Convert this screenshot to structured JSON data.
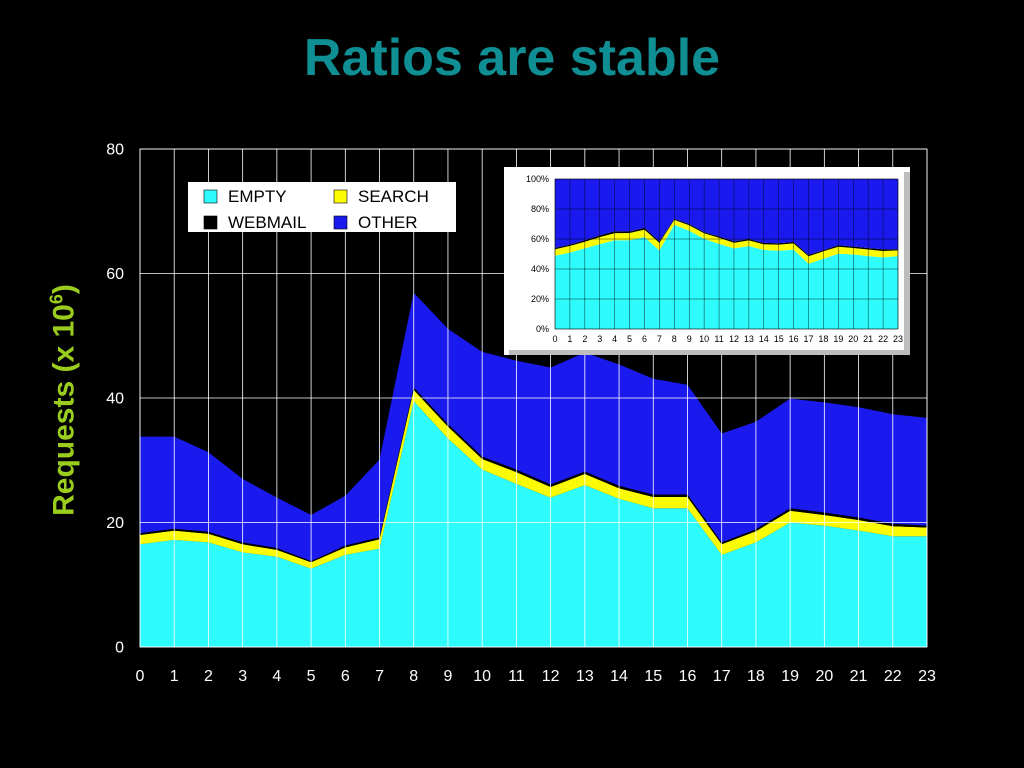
{
  "slide": {
    "title": "Ratios are stable",
    "ylabel_main": "Requests (x 10",
    "ylabel_sup": "6",
    "ylabel_end": ")"
  },
  "chart_data": [
    {
      "type": "area",
      "stacked": true,
      "title": "",
      "xlabel": "",
      "ylabel": "Requests (x 10^6)",
      "x": [
        0,
        1,
        2,
        3,
        4,
        5,
        6,
        7,
        8,
        9,
        10,
        11,
        12,
        13,
        14,
        15,
        16,
        17,
        18,
        19,
        20,
        21,
        22,
        23
      ],
      "ylim": [
        0,
        80
      ],
      "yticks": [
        0,
        20,
        40,
        60,
        80
      ],
      "grid": true,
      "legend_position": "top-left",
      "series": [
        {
          "name": "EMPTY",
          "color": "#2efcfc",
          "values": [
            16.5,
            17.2,
            16.8,
            15.2,
            14.5,
            12.6,
            14.8,
            15.8,
            39.5,
            33.5,
            28.5,
            26.2,
            24.0,
            26.0,
            23.8,
            22.3,
            22.3,
            14.8,
            16.8,
            20.0,
            19.5,
            18.7,
            17.8,
            17.8
          ]
        },
        {
          "name": "SEARCH",
          "color": "#fbfb05",
          "values": [
            1.5,
            1.5,
            1.4,
            1.3,
            1.1,
            1.0,
            1.2,
            1.5,
            1.8,
            1.9,
            1.7,
            1.9,
            1.7,
            1.8,
            1.7,
            1.8,
            1.8,
            1.7,
            1.8,
            1.9,
            1.7,
            1.7,
            1.6,
            1.4
          ]
        },
        {
          "name": "WEBMAIL",
          "color": "#000000",
          "values": [
            0.3,
            0.3,
            0.3,
            0.3,
            0.3,
            0.2,
            0.3,
            0.3,
            0.4,
            0.4,
            0.4,
            0.4,
            0.4,
            0.4,
            0.4,
            0.4,
            0.4,
            0.3,
            0.3,
            0.4,
            0.4,
            0.4,
            0.4,
            0.3
          ]
        },
        {
          "name": "OTHER",
          "color": "#1a1aee",
          "values": [
            15.5,
            14.8,
            12.8,
            10.2,
            8.1,
            7.4,
            8.0,
            12.5,
            15.2,
            15.3,
            16.8,
            17.5,
            18.8,
            19.1,
            19.5,
            18.6,
            17.6,
            17.5,
            17.3,
            17.6,
            17.7,
            17.7,
            17.6,
            17.3
          ]
        }
      ]
    },
    {
      "type": "area",
      "stacked": true,
      "percent": true,
      "title": "",
      "x": [
        0,
        1,
        2,
        3,
        4,
        5,
        6,
        7,
        8,
        9,
        10,
        11,
        12,
        13,
        14,
        15,
        16,
        17,
        18,
        19,
        20,
        21,
        22,
        23
      ],
      "ylim": [
        0,
        100
      ],
      "yticks": [
        "0%",
        "20%",
        "40%",
        "60%",
        "80%",
        "100%"
      ],
      "grid": true,
      "series": [
        {
          "name": "EMPTY",
          "color": "#2efcfc",
          "values": [
            48.8,
            51.0,
            53.7,
            56.5,
            59.2,
            59.2,
            61.3,
            52.4,
            69.5,
            65.5,
            60.2,
            56.7,
            53.7,
            55.3,
            52.7,
            52.1,
            52.8,
            43.5,
            46.8,
            50.1,
            49.7,
            48.6,
            47.7,
            48.6
          ]
        },
        {
          "name": "SEARCH",
          "color": "#fbfb05",
          "values": [
            4.4,
            4.4,
            4.5,
            4.8,
            4.7,
            4.8,
            5.0,
            5.0,
            3.2,
            3.7,
            3.6,
            4.1,
            3.8,
            3.8,
            3.8,
            4.2,
            4.3,
            5.0,
            5.0,
            4.8,
            4.3,
            4.4,
            4.3,
            3.8
          ]
        },
        {
          "name": "WEBMAIL",
          "color": "#000000",
          "values": [
            0.9,
            0.9,
            1.0,
            1.1,
            1.3,
            1.0,
            1.2,
            1.0,
            0.7,
            0.8,
            0.8,
            0.9,
            0.9,
            0.9,
            0.9,
            0.9,
            1.0,
            0.9,
            0.8,
            1.0,
            1.0,
            1.0,
            1.1,
            0.8
          ]
        },
        {
          "name": "OTHER",
          "color": "#1a1aee",
          "values": [
            45.9,
            43.7,
            40.8,
            37.6,
            34.8,
            35.0,
            32.5,
            41.6,
            26.6,
            30.0,
            35.4,
            38.3,
            41.6,
            40.0,
            42.6,
            42.8,
            41.9,
            50.6,
            47.4,
            44.1,
            45.0,
            46.0,
            46.9,
            46.8
          ]
        }
      ]
    }
  ]
}
